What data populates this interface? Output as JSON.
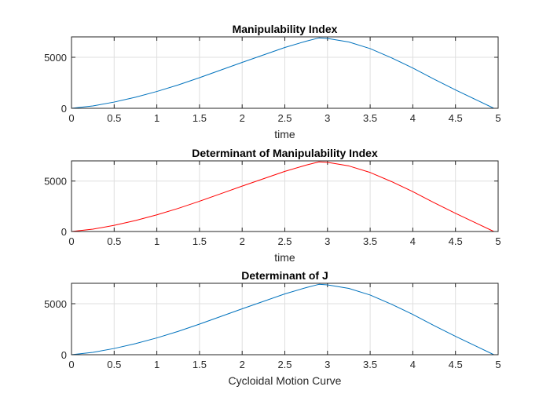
{
  "chart_data": [
    {
      "type": "line",
      "title": "Manipulability Index",
      "xlabel": "time",
      "ylabel": "",
      "xlim": [
        0,
        5
      ],
      "ylim": [
        0,
        7000
      ],
      "xticks": [
        "0",
        "0.5",
        "1",
        "1.5",
        "2",
        "2.5",
        "3",
        "3.5",
        "4",
        "4.5",
        "5"
      ],
      "yticks": [
        "0",
        "5000"
      ],
      "grid": true,
      "series": [
        {
          "color": "#0072bd",
          "x": [
            0,
            0.25,
            0.5,
            0.75,
            1,
            1.25,
            1.5,
            1.75,
            2,
            2.25,
            2.5,
            2.75,
            2.9,
            3,
            3.25,
            3.5,
            3.75,
            4,
            4.25,
            4.5,
            4.75,
            4.95
          ],
          "y": [
            0,
            230,
            610,
            1090,
            1650,
            2290,
            3000,
            3750,
            4500,
            5230,
            5960,
            6580,
            6900,
            6850,
            6500,
            5850,
            4950,
            3950,
            2850,
            1800,
            800,
            0
          ]
        }
      ]
    },
    {
      "type": "line",
      "title": "Determinant of Manipulability Index",
      "xlabel": "time",
      "ylabel": "",
      "xlim": [
        0,
        5
      ],
      "ylim": [
        0,
        7000
      ],
      "xticks": [
        "0",
        "0.5",
        "1",
        "1.5",
        "2",
        "2.5",
        "3",
        "3.5",
        "4",
        "4.5",
        "5"
      ],
      "yticks": [
        "0",
        "5000"
      ],
      "grid": true,
      "series": [
        {
          "color": "#ff0000",
          "x": [
            0,
            0.25,
            0.5,
            0.75,
            1,
            1.25,
            1.5,
            1.75,
            2,
            2.25,
            2.5,
            2.75,
            2.9,
            3,
            3.25,
            3.5,
            3.75,
            4,
            4.25,
            4.5,
            4.75,
            4.95
          ],
          "y": [
            0,
            230,
            610,
            1090,
            1650,
            2290,
            3000,
            3750,
            4500,
            5230,
            5960,
            6580,
            6900,
            6850,
            6500,
            5850,
            4950,
            3950,
            2850,
            1800,
            800,
            0
          ]
        }
      ]
    },
    {
      "type": "line",
      "title": "Determinant of J",
      "xlabel": "Cycloidal Motion Curve",
      "ylabel": "",
      "xlim": [
        0,
        5
      ],
      "ylim": [
        0,
        7000
      ],
      "xticks": [
        "0",
        "0.5",
        "1",
        "1.5",
        "2",
        "2.5",
        "3",
        "3.5",
        "4",
        "4.5",
        "5"
      ],
      "yticks": [
        "0",
        "5000"
      ],
      "grid": true,
      "series": [
        {
          "color": "#0072bd",
          "x": [
            0,
            0.25,
            0.5,
            0.75,
            1,
            1.25,
            1.5,
            1.75,
            2,
            2.25,
            2.5,
            2.75,
            2.9,
            3,
            3.25,
            3.5,
            3.75,
            4,
            4.25,
            4.5,
            4.75,
            4.95
          ],
          "y": [
            0,
            230,
            610,
            1090,
            1650,
            2290,
            3000,
            3750,
            4500,
            5230,
            5960,
            6580,
            6900,
            6850,
            6500,
            5850,
            4950,
            3950,
            2850,
            1800,
            800,
            0
          ]
        }
      ]
    }
  ]
}
